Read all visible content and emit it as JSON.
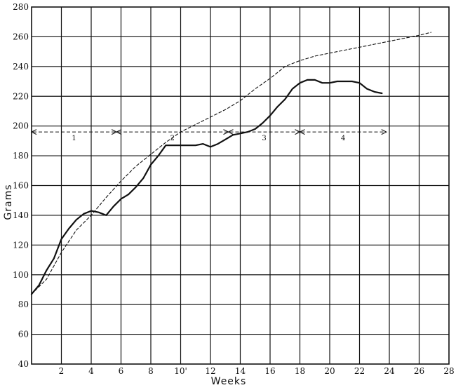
{
  "chart_data": {
    "type": "line",
    "title": "",
    "xlabel": "Weeks",
    "ylabel": "Grams",
    "xlim": [
      0,
      28
    ],
    "ylim": [
      40,
      280
    ],
    "grid": true,
    "x_ticks": [
      "2",
      "4",
      "6",
      "8",
      "10'",
      "12",
      "14",
      "16",
      "18",
      "20",
      "22",
      "24",
      "26",
      "28"
    ],
    "y_ticks": [
      "40",
      "60",
      "80",
      "100",
      "120",
      "140",
      "160",
      "180",
      "200",
      "220",
      "240",
      "260",
      "280"
    ],
    "series": [
      {
        "style": "solid",
        "x": [
          0,
          0.5,
          1,
          1.5,
          2,
          2.5,
          3,
          3.5,
          4,
          4.5,
          5,
          5.5,
          6,
          6.5,
          7,
          7.5,
          8,
          8.5,
          9,
          9.5,
          10,
          10.5,
          11,
          11.5,
          12,
          12.5,
          13,
          13.5,
          14,
          14.5,
          15,
          15.5,
          16,
          16.5,
          17,
          17.5,
          18,
          18.5,
          19,
          19.5,
          20,
          20.5,
          21,
          21.5,
          22,
          22.5,
          23,
          23.5
        ],
        "y": [
          87,
          93,
          103,
          111,
          124,
          131,
          137,
          141,
          143,
          142,
          140,
          146,
          151,
          154,
          159,
          165,
          174,
          180,
          187,
          187,
          187,
          187,
          187,
          188,
          186,
          188,
          191,
          194,
          195,
          196,
          198,
          202,
          207,
          213,
          218,
          225,
          229,
          231,
          231,
          229,
          229,
          230,
          230,
          230,
          229,
          225,
          223,
          222
        ]
      },
      {
        "style": "dashed",
        "x": [
          0,
          1,
          2,
          3,
          4,
          5,
          6,
          7,
          8,
          9,
          10,
          11,
          12,
          13,
          14,
          15,
          16,
          17,
          18,
          19,
          20,
          21,
          22,
          23,
          24,
          25,
          26,
          26.8
        ],
        "y": [
          87,
          97,
          115,
          130,
          140,
          152,
          163,
          173,
          181,
          189,
          196,
          201,
          206,
          211,
          217,
          225,
          232,
          240,
          244,
          247,
          249,
          251,
          253,
          255,
          257,
          259,
          261,
          263
        ]
      }
    ],
    "phase_arrows": {
      "y": 196,
      "segments": [
        {
          "label": "1",
          "from": 0,
          "to": 5.7
        },
        {
          "label": "2",
          "from": 5.7,
          "to": 13.2
        },
        {
          "label": "3",
          "from": 13.2,
          "to": 18
        },
        {
          "label": "4",
          "from": 18,
          "to": 23.8
        }
      ]
    }
  }
}
